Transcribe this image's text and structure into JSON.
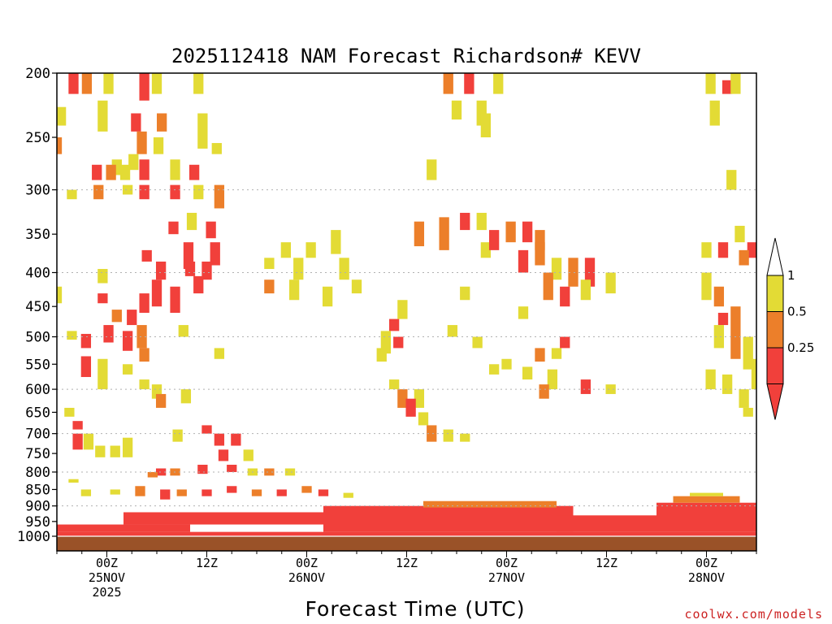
{
  "chart_data": {
    "type": "heatmap",
    "title": "2025112418 NAM Forecast Richardson# KEVV",
    "xlabel": "Forecast Time (UTC)",
    "ylabel": "",
    "credit": "coolwx.com/models",
    "y_scale": "log",
    "y_reversed": true,
    "ylim": [
      1000,
      200
    ],
    "yticks": [
      200,
      250,
      300,
      350,
      400,
      450,
      500,
      550,
      600,
      650,
      700,
      750,
      800,
      850,
      900,
      950,
      1000
    ],
    "y_gridlines": [
      300,
      400,
      500,
      600,
      700,
      800,
      900
    ],
    "xlim_hours": [
      -6,
      78
    ],
    "xticks": [
      {
        "hour": 0,
        "label1": "00Z",
        "label2": "25NOV",
        "label3": "2025"
      },
      {
        "hour": 12,
        "label1": "12Z",
        "label2": "",
        "label3": ""
      },
      {
        "hour": 24,
        "label1": "00Z",
        "label2": "26NOV",
        "label3": ""
      },
      {
        "hour": 36,
        "label1": "12Z",
        "label2": "",
        "label3": ""
      },
      {
        "hour": 48,
        "label1": "00Z",
        "label2": "27NOV",
        "label3": ""
      },
      {
        "hour": 60,
        "label1": "12Z",
        "label2": "",
        "label3": ""
      },
      {
        "hour": 72,
        "label1": "00Z",
        "label2": "28NOV",
        "label3": ""
      }
    ],
    "ground_color": "#9a5228",
    "legend": {
      "placement": "right",
      "levels": [
        {
          "label": "1",
          "color": "#e3db35"
        },
        {
          "label": "0.5",
          "color": "#ec7f2a"
        },
        {
          "label": "0.25",
          "color": "#f1403b"
        }
      ],
      "top_color": "#ffffff",
      "bottom_color": "#f1403b"
    },
    "categories": [
      {
        "code": 1,
        "range": "Ri < 0.25",
        "color": "#f1403b"
      },
      {
        "code": 2,
        "range": "0.25 - 0.5",
        "color": "#ec7f2a"
      },
      {
        "code": 3,
        "range": "0.5 - 1",
        "color": "#e3db35"
      }
    ],
    "cells": [
      [
        -4,
        200,
        215,
        1
      ],
      [
        -2.4,
        200,
        215,
        2
      ],
      [
        0.2,
        200,
        215,
        3
      ],
      [
        4.5,
        200,
        220,
        1
      ],
      [
        6,
        200,
        215,
        3
      ],
      [
        11,
        200,
        215,
        3
      ],
      [
        -5.5,
        225,
        240,
        3
      ],
      [
        -0.5,
        220,
        245,
        3
      ],
      [
        3.5,
        230,
        245,
        1
      ],
      [
        6.6,
        230,
        245,
        2
      ],
      [
        11.5,
        230,
        260,
        3
      ],
      [
        4.2,
        245,
        265,
        2
      ],
      [
        6.2,
        250,
        265,
        3
      ],
      [
        -6,
        250,
        265,
        2
      ],
      [
        1.2,
        270,
        285,
        3
      ],
      [
        3.2,
        265,
        280,
        3
      ],
      [
        13.2,
        255,
        265,
        3
      ],
      [
        -1.2,
        275,
        290,
        1
      ],
      [
        0.5,
        275,
        290,
        2
      ],
      [
        2.2,
        275,
        290,
        3
      ],
      [
        4.5,
        270,
        290,
        1
      ],
      [
        8.2,
        270,
        290,
        3
      ],
      [
        10.5,
        275,
        290,
        1
      ],
      [
        -4.2,
        300,
        310,
        3
      ],
      [
        -1,
        295,
        310,
        2
      ],
      [
        2.5,
        295,
        305,
        3
      ],
      [
        4.5,
        295,
        310,
        1
      ],
      [
        8.2,
        295,
        310,
        1
      ],
      [
        11,
        295,
        310,
        3
      ],
      [
        13.5,
        295,
        320,
        2
      ],
      [
        8,
        335,
        350,
        1
      ],
      [
        10.2,
        325,
        345,
        3
      ],
      [
        12.5,
        335,
        355,
        1
      ],
      [
        21.5,
        360,
        380,
        3
      ],
      [
        24.5,
        360,
        380,
        3
      ],
      [
        27.5,
        345,
        375,
        3
      ],
      [
        4.8,
        370,
        385,
        1
      ],
      [
        9.8,
        360,
        395,
        1
      ],
      [
        13,
        360,
        390,
        1
      ],
      [
        6.5,
        385,
        410,
        1
      ],
      [
        10,
        385,
        405,
        1
      ],
      [
        12,
        385,
        410,
        1
      ],
      [
        19.5,
        380,
        395,
        3
      ],
      [
        23,
        380,
        410,
        3
      ],
      [
        28.5,
        380,
        410,
        3
      ],
      [
        -6,
        420,
        445,
        3
      ],
      [
        -0.5,
        395,
        415,
        3
      ],
      [
        6,
        410,
        450,
        1
      ],
      [
        8.2,
        420,
        460,
        1
      ],
      [
        11,
        405,
        430,
        1
      ],
      [
        19.5,
        410,
        430,
        2
      ],
      [
        22.5,
        410,
        440,
        3
      ],
      [
        26.5,
        420,
        450,
        3
      ],
      [
        30,
        410,
        430,
        3
      ],
      [
        -0.5,
        430,
        445,
        1
      ],
      [
        4.5,
        430,
        460,
        1
      ],
      [
        1.2,
        455,
        475,
        2
      ],
      [
        3,
        455,
        480,
        1
      ],
      [
        -4.2,
        490,
        505,
        3
      ],
      [
        -2.5,
        495,
        520,
        1
      ],
      [
        0.2,
        480,
        510,
        1
      ],
      [
        2.5,
        490,
        525,
        1
      ],
      [
        4.2,
        480,
        520,
        2
      ],
      [
        9.2,
        480,
        500,
        3
      ],
      [
        -2.5,
        535,
        575,
        1
      ],
      [
        4.5,
        520,
        545,
        2
      ],
      [
        -0.5,
        540,
        600,
        3
      ],
      [
        2.5,
        550,
        570,
        3
      ],
      [
        13.5,
        520,
        540,
        3
      ],
      [
        4.5,
        580,
        600,
        3
      ],
      [
        6,
        590,
        620,
        3
      ],
      [
        6.5,
        610,
        640,
        2
      ],
      [
        9.5,
        600,
        630,
        3
      ],
      [
        -4.5,
        640,
        660,
        3
      ],
      [
        -3.5,
        670,
        690,
        1
      ],
      [
        -3.5,
        700,
        740,
        1
      ],
      [
        -2.2,
        700,
        740,
        3
      ],
      [
        -0.8,
        730,
        760,
        3
      ],
      [
        1,
        730,
        760,
        3
      ],
      [
        2.5,
        710,
        760,
        3
      ],
      [
        8.5,
        690,
        720,
        3
      ],
      [
        12,
        680,
        700,
        1
      ],
      [
        13.5,
        700,
        730,
        1
      ],
      [
        15.5,
        700,
        730,
        1
      ],
      [
        14,
        740,
        770,
        1
      ],
      [
        17,
        740,
        770,
        3
      ],
      [
        6.5,
        790,
        810,
        1
      ],
      [
        5.5,
        800,
        815,
        2
      ],
      [
        8.2,
        790,
        810,
        2
      ],
      [
        11.5,
        780,
        805,
        1
      ],
      [
        15,
        780,
        800,
        1
      ],
      [
        17.5,
        790,
        810,
        3
      ],
      [
        19.5,
        790,
        810,
        2
      ],
      [
        22,
        790,
        810,
        3
      ],
      [
        -4,
        820,
        830,
        3
      ],
      [
        -2.5,
        850,
        870,
        3
      ],
      [
        1,
        850,
        865,
        3
      ],
      [
        4,
        840,
        870,
        2
      ],
      [
        7,
        850,
        880,
        1
      ],
      [
        9,
        850,
        870,
        2
      ],
      [
        12,
        850,
        870,
        1
      ],
      [
        15,
        840,
        860,
        1
      ],
      [
        18,
        850,
        870,
        2
      ],
      [
        21,
        850,
        870,
        1
      ],
      [
        24,
        840,
        860,
        2
      ],
      [
        26,
        850,
        870,
        1
      ],
      [
        29,
        860,
        875,
        3
      ],
      [
        41.5,
        480,
        500,
        3
      ],
      [
        44.5,
        500,
        520,
        3
      ],
      [
        46.5,
        550,
        570,
        3
      ],
      [
        48,
        540,
        560,
        3
      ],
      [
        45.5,
        360,
        380,
        3
      ],
      [
        43,
        420,
        440,
        3
      ],
      [
        50,
        450,
        470,
        3
      ],
      [
        33,
        520,
        545,
        3
      ],
      [
        34.5,
        580,
        600,
        3
      ],
      [
        35.5,
        600,
        640,
        2
      ],
      [
        37.5,
        600,
        640,
        3
      ],
      [
        36.5,
        620,
        660,
        1
      ],
      [
        38,
        650,
        680,
        3
      ],
      [
        39,
        680,
        720,
        2
      ],
      [
        41,
        690,
        720,
        3
      ],
      [
        43,
        700,
        720,
        3
      ],
      [
        34.5,
        470,
        490,
        1
      ],
      [
        35,
        500,
        520,
        1
      ],
      [
        33.5,
        490,
        530,
        3
      ],
      [
        35.5,
        440,
        470,
        3
      ],
      [
        39,
        270,
        290,
        3
      ],
      [
        37.5,
        335,
        365,
        2
      ],
      [
        40.5,
        330,
        370,
        2
      ],
      [
        43,
        325,
        345,
        1
      ],
      [
        45,
        325,
        345,
        3
      ],
      [
        46.5,
        345,
        370,
        1
      ],
      [
        48.5,
        335,
        360,
        2
      ],
      [
        50.5,
        335,
        360,
        1
      ],
      [
        52,
        345,
        370,
        2
      ],
      [
        50,
        370,
        400,
        1
      ],
      [
        52,
        360,
        390,
        2
      ],
      [
        54,
        380,
        410,
        3
      ],
      [
        56,
        380,
        420,
        2
      ],
      [
        58,
        380,
        420,
        1
      ],
      [
        60.5,
        400,
        430,
        3
      ],
      [
        53,
        400,
        440,
        2
      ],
      [
        55,
        420,
        450,
        1
      ],
      [
        57.5,
        410,
        440,
        3
      ],
      [
        52,
        520,
        545,
        2
      ],
      [
        54,
        520,
        540,
        3
      ],
      [
        55,
        500,
        520,
        1
      ],
      [
        50.5,
        555,
        580,
        3
      ],
      [
        53.5,
        560,
        600,
        3
      ],
      [
        52.5,
        590,
        620,
        2
      ],
      [
        57.5,
        580,
        610,
        1
      ],
      [
        60.5,
        590,
        610,
        3
      ],
      [
        41,
        200,
        215,
        2
      ],
      [
        43.5,
        200,
        215,
        1
      ],
      [
        42,
        220,
        235,
        3
      ],
      [
        45,
        220,
        240,
        3
      ],
      [
        47,
        200,
        215,
        3
      ],
      [
        45.5,
        230,
        250,
        3
      ],
      [
        72.5,
        200,
        215,
        3
      ],
      [
        74.5,
        205,
        215,
        1
      ],
      [
        75.5,
        200,
        215,
        3
      ],
      [
        73,
        220,
        240,
        3
      ],
      [
        75,
        280,
        300,
        3
      ],
      [
        72,
        360,
        380,
        3
      ],
      [
        74,
        360,
        380,
        1
      ],
      [
        76,
        340,
        360,
        3
      ],
      [
        77.5,
        360,
        380,
        1
      ],
      [
        76.5,
        370,
        390,
        2
      ],
      [
        72,
        400,
        440,
        3
      ],
      [
        73.5,
        420,
        450,
        2
      ],
      [
        74,
        460,
        480,
        1
      ],
      [
        75.5,
        450,
        500,
        2
      ],
      [
        73.5,
        480,
        520,
        3
      ],
      [
        75.5,
        500,
        540,
        2
      ],
      [
        77,
        500,
        560,
        3
      ],
      [
        78,
        540,
        600,
        3
      ],
      [
        72.5,
        560,
        600,
        3
      ],
      [
        74.5,
        570,
        610,
        3
      ],
      [
        76.5,
        600,
        640,
        3
      ],
      [
        77,
        640,
        660,
        3
      ]
    ],
    "bands": [
      {
        "x0": -6,
        "x1": 78,
        "p0": 985,
        "p1": 1005,
        "cat": 1
      },
      {
        "x0": -6,
        "x1": 10,
        "p0": 960,
        "p1": 985,
        "cat": 1
      },
      {
        "x0": 2,
        "x1": 26,
        "p0": 920,
        "p1": 960,
        "cat": 1
      },
      {
        "x0": 26,
        "x1": 56,
        "p0": 900,
        "p1": 985,
        "cat": 1
      },
      {
        "x0": 38,
        "x1": 54,
        "p0": 885,
        "p1": 905,
        "cat": 2
      },
      {
        "x0": 54,
        "x1": 66,
        "p0": 930,
        "p1": 985,
        "cat": 1
      },
      {
        "x0": 66,
        "x1": 78,
        "p0": 890,
        "p1": 985,
        "cat": 1
      },
      {
        "x0": 68,
        "x1": 76,
        "p0": 870,
        "p1": 890,
        "cat": 2
      },
      {
        "x0": 70,
        "x1": 74,
        "p0": 860,
        "p1": 870,
        "cat": 3
      }
    ]
  }
}
